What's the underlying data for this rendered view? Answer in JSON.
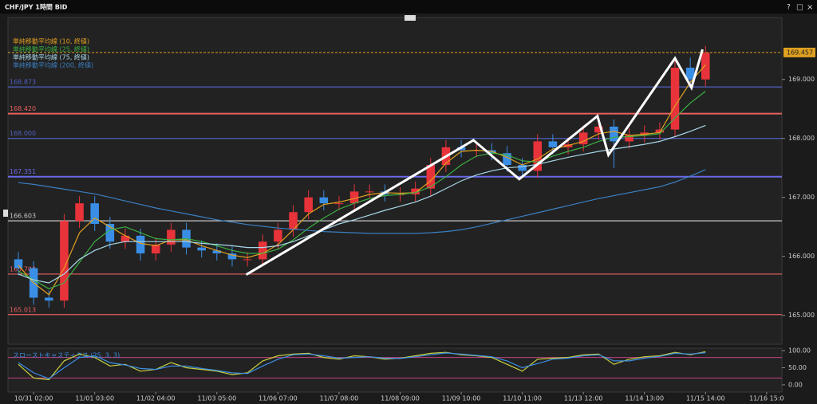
{
  "chart_data": [
    {
      "type": "candlestick",
      "title": "CHF/JPY 1時間 BID",
      "x": [
        -0.25,
        0,
        0.25,
        0.5,
        0.75,
        1,
        1.25,
        1.5,
        1.75,
        2,
        2.25,
        2.5,
        2.75,
        3,
        3.25,
        3.5,
        3.75,
        4,
        4.25,
        4.5,
        4.75,
        5,
        5.25,
        5.5,
        5.75,
        6,
        6.25,
        6.5,
        6.75,
        7,
        7.25,
        7.5,
        7.75,
        8,
        8.25,
        8.5,
        8.75,
        9,
        9.25,
        9.5,
        9.75,
        10,
        10.25,
        10.5,
        10.75,
        11
      ],
      "open": [
        165.95,
        165.8,
        165.3,
        165.25,
        166.6,
        166.9,
        166.55,
        166.25,
        166.35,
        166.05,
        166.2,
        166.45,
        166.15,
        166.1,
        166.05,
        165.95,
        165.95,
        166.25,
        166.45,
        166.75,
        167.0,
        166.9,
        166.9,
        167.1,
        167.1,
        167.05,
        167.05,
        167.15,
        167.55,
        167.85,
        167.8,
        167.8,
        167.75,
        167.55,
        167.45,
        167.95,
        167.85,
        167.9,
        168.1,
        168.2,
        167.95,
        168.05,
        168.1,
        168.15,
        169.2,
        169.0
      ],
      "high": [
        166.07,
        165.92,
        165.42,
        166.72,
        167.02,
        167.02,
        166.67,
        166.47,
        166.47,
        166.32,
        166.57,
        166.57,
        166.27,
        166.22,
        166.17,
        166.07,
        166.37,
        166.57,
        166.87,
        167.12,
        167.12,
        167.02,
        167.22,
        167.22,
        167.22,
        167.17,
        167.27,
        167.67,
        167.97,
        167.97,
        167.92,
        167.92,
        167.87,
        167.67,
        168.07,
        168.07,
        168.02,
        168.22,
        168.32,
        168.32,
        168.17,
        168.22,
        168.27,
        169.32,
        169.37,
        169.57
      ],
      "low": [
        165.68,
        165.18,
        165.13,
        165.13,
        166.48,
        166.43,
        166.13,
        166.13,
        165.93,
        165.93,
        166.08,
        166.03,
        165.98,
        165.93,
        165.83,
        165.83,
        165.83,
        166.13,
        166.33,
        166.63,
        166.78,
        166.78,
        166.78,
        166.98,
        166.93,
        166.93,
        166.93,
        167.03,
        167.43,
        167.68,
        167.68,
        167.63,
        167.43,
        167.33,
        167.33,
        167.73,
        167.73,
        167.78,
        167.98,
        167.5,
        167.83,
        167.93,
        167.98,
        168.03,
        168.88,
        168.88
      ],
      "close": [
        165.8,
        165.3,
        165.25,
        166.6,
        166.9,
        166.55,
        166.25,
        166.35,
        166.05,
        166.2,
        166.45,
        166.15,
        166.1,
        166.05,
        165.95,
        165.95,
        166.25,
        166.45,
        166.75,
        167.0,
        166.9,
        166.9,
        167.1,
        167.1,
        167.05,
        167.05,
        167.15,
        167.55,
        167.85,
        167.8,
        167.8,
        167.75,
        167.55,
        167.45,
        167.95,
        167.85,
        167.9,
        168.1,
        168.2,
        167.95,
        168.05,
        168.1,
        168.15,
        169.2,
        169.0,
        169.45
      ],
      "up_color": "#e8333a",
      "down_color": "#3a8ee6",
      "series": [
        {
          "name": "単純移動平均線 (10, 終値)",
          "color": "#e0a020",
          "values": [
            165.85,
            165.55,
            165.35,
            165.8,
            166.4,
            166.65,
            166.5,
            166.35,
            166.22,
            166.18,
            166.28,
            166.28,
            166.18,
            166.1,
            166.02,
            165.98,
            166.05,
            166.2,
            166.45,
            166.72,
            166.88,
            166.92,
            166.98,
            167.05,
            167.08,
            167.07,
            167.08,
            167.28,
            167.58,
            167.78,
            167.8,
            167.78,
            167.68,
            167.55,
            167.65,
            167.82,
            167.88,
            167.95,
            168.08,
            168.12,
            168.05,
            168.07,
            168.1,
            168.55,
            168.95,
            169.25
          ]
        },
        {
          "name": "単純移動平均線 (25, 終値)",
          "color": "#3cb043",
          "values": [
            165.75,
            165.6,
            165.45,
            165.55,
            165.9,
            166.25,
            166.45,
            166.5,
            166.4,
            166.3,
            166.28,
            166.3,
            166.25,
            166.18,
            166.1,
            166.05,
            166.05,
            166.12,
            166.28,
            166.48,
            166.65,
            166.8,
            166.9,
            166.98,
            167.03,
            167.05,
            167.08,
            167.18,
            167.35,
            167.55,
            167.7,
            167.75,
            167.72,
            167.62,
            167.6,
            167.7,
            167.78,
            167.85,
            167.95,
            168.02,
            168.03,
            168.05,
            168.08,
            168.35,
            168.6,
            168.8
          ]
        },
        {
          "name": "単純移動平均線 (75, 終値)",
          "color": "#a8d8e8",
          "values": [
            165.7,
            165.6,
            165.55,
            165.7,
            165.95,
            166.1,
            166.2,
            166.25,
            166.25,
            166.25,
            166.25,
            166.25,
            166.22,
            166.2,
            166.18,
            166.15,
            166.15,
            166.18,
            166.25,
            166.35,
            166.45,
            166.55,
            166.62,
            166.7,
            166.78,
            166.85,
            166.92,
            167.02,
            167.15,
            167.28,
            167.38,
            167.45,
            167.5,
            167.52,
            167.56,
            167.62,
            167.68,
            167.73,
            167.78,
            167.82,
            167.86,
            167.9,
            167.95,
            168.03,
            168.12,
            168.22
          ]
        },
        {
          "name": "単純移動平均線 (200, 終値)",
          "color": "#3a7fc0",
          "values": [
            167.25,
            167.22,
            167.18,
            167.14,
            167.1,
            167.06,
            167.0,
            166.94,
            166.88,
            166.82,
            166.77,
            166.72,
            166.67,
            166.62,
            166.58,
            166.54,
            166.51,
            166.48,
            166.46,
            166.44,
            166.42,
            166.41,
            166.4,
            166.39,
            166.39,
            166.39,
            166.39,
            166.4,
            166.42,
            166.45,
            166.5,
            166.56,
            166.62,
            166.68,
            166.74,
            166.8,
            166.86,
            166.92,
            166.98,
            167.03,
            167.08,
            167.13,
            167.18,
            167.26,
            167.36,
            167.47
          ]
        }
      ],
      "levels": [
        {
          "value": 168.873,
          "label": "168.873",
          "color": "#5060c0"
        },
        {
          "value": 168.42,
          "label": "168.420",
          "color": "#e86060"
        },
        {
          "value": 168.0,
          "label": "168.000",
          "color": "#5060c0"
        },
        {
          "value": 167.351,
          "label": "167.351",
          "color": "#6a6ae8"
        },
        {
          "value": 166.603,
          "label": "166.603",
          "color": "#c8c8c8"
        },
        {
          "value": 165.7,
          "label": "165.700",
          "color": "#e86060"
        },
        {
          "value": 165.013,
          "label": "165.013",
          "color": "#e86060"
        }
      ],
      "last_price": {
        "value": 169.457,
        "label": "169.457",
        "color": "#e0a020"
      },
      "drawing": {
        "color": "#ffffff",
        "x": [
          3.48,
          7.2,
          7.95,
          9.23,
          9.41,
          10.5,
          10.77,
          10.95
        ],
        "y": [
          165.69,
          167.97,
          167.31,
          168.38,
          167.72,
          169.36,
          168.86,
          169.51
        ]
      },
      "xlim": [
        -0.42,
        12.25
      ],
      "xticks": [
        {
          "value": 0,
          "label": "10/31 02:00"
        },
        {
          "value": 1,
          "label": "11/01 03:00"
        },
        {
          "value": 2,
          "label": "11/02 04:00"
        },
        {
          "value": 3,
          "label": "11/03 05:00"
        },
        {
          "value": 4,
          "label": "11/06 07:00"
        },
        {
          "value": 5,
          "label": "11/07 08:00"
        },
        {
          "value": 6,
          "label": "11/08 09:00"
        },
        {
          "value": 7,
          "label": "11/09 10:00"
        },
        {
          "value": 8,
          "label": "11/10 11:00"
        },
        {
          "value": 9,
          "label": "11/13 12:00"
        },
        {
          "value": 10,
          "label": "11/14 13:00"
        },
        {
          "value": 11,
          "label": "11/15 14:00"
        },
        {
          "value": 12,
          "label": "11/16 15:0"
        }
      ],
      "ylim": [
        164.51,
        170.05
      ],
      "yticks": [
        {
          "value": 165,
          "label": "165.000"
        },
        {
          "value": 166,
          "label": "166.000"
        },
        {
          "value": 167,
          "label": "167.000"
        },
        {
          "value": 168,
          "label": "168.000"
        },
        {
          "value": 169,
          "label": "169.000"
        }
      ]
    },
    {
      "type": "line",
      "title": "スローストキャスティクス (25, 3, 3)",
      "x": [
        -0.25,
        0,
        0.25,
        0.5,
        0.75,
        1,
        1.25,
        1.5,
        1.75,
        2,
        2.25,
        2.5,
        2.75,
        3,
        3.25,
        3.5,
        3.75,
        4,
        4.25,
        4.5,
        4.75,
        5,
        5.25,
        5.5,
        5.75,
        6,
        6.25,
        6.5,
        6.75,
        7,
        7.25,
        7.5,
        7.75,
        8,
        8.25,
        8.5,
        8.75,
        9,
        9.25,
        9.5,
        9.75,
        10,
        10.25,
        10.5,
        10.75,
        11
      ],
      "series": [
        {
          "color": "#c8d040",
          "values": [
            60,
            20,
            15,
            70,
            90,
            80,
            55,
            60,
            40,
            45,
            65,
            50,
            45,
            40,
            30,
            35,
            70,
            85,
            90,
            92,
            80,
            75,
            85,
            82,
            75,
            78,
            85,
            92,
            95,
            88,
            85,
            80,
            60,
            40,
            75,
            78,
            80,
            88,
            90,
            60,
            75,
            82,
            85,
            95,
            88,
            97
          ]
        },
        {
          "color": "#3a8ee6",
          "values": [
            65,
            35,
            18,
            50,
            80,
            85,
            65,
            58,
            48,
            45,
            55,
            55,
            48,
            42,
            35,
            33,
            55,
            75,
            88,
            90,
            85,
            78,
            80,
            82,
            78,
            77,
            82,
            88,
            93,
            90,
            86,
            82,
            70,
            50,
            62,
            75,
            78,
            85,
            88,
            70,
            70,
            78,
            83,
            92,
            90,
            94
          ]
        }
      ],
      "levels": [
        80,
        20
      ],
      "level_color": "#c04080",
      "xlim": [
        -0.42,
        12.25
      ],
      "ylim": [
        -21,
        107
      ],
      "yticks": [
        {
          "value": 100,
          "label": "100.00"
        },
        {
          "value": 50,
          "label": "50.00"
        },
        {
          "value": 0,
          "label": "0.00"
        }
      ]
    }
  ],
  "window_controls": [
    "?",
    "□",
    "×"
  ]
}
